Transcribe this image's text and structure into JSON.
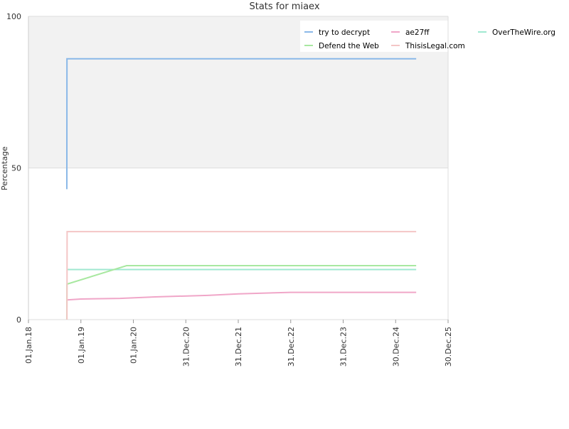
{
  "chart_data": {
    "type": "line",
    "title": "Stats for miaex",
    "y_label": "Percentage",
    "xlim": [
      "2018-01-01",
      "2025-12-30"
    ],
    "xticks": [
      {
        "value": "2018-01-01",
        "label": "01.Jan.18"
      },
      {
        "value": "2019-01-01",
        "label": "01.Jan.19"
      },
      {
        "value": "2020-01-01",
        "label": "01.Jan.20"
      },
      {
        "value": "2020-12-31",
        "label": "31.Dec.20"
      },
      {
        "value": "2021-12-31",
        "label": "31.Dec.21"
      },
      {
        "value": "2022-12-31",
        "label": "31.Dec.22"
      },
      {
        "value": "2023-12-31",
        "label": "31.Dec.23"
      },
      {
        "value": "2024-12-30",
        "label": "30.Dec.24"
      },
      {
        "value": "2025-12-30",
        "label": "30.Dec.25"
      }
    ],
    "ylim": [
      0,
      100
    ],
    "yticks": [
      0,
      50,
      100
    ],
    "grid": true,
    "series": [
      {
        "name": "try to decrypt",
        "color": "#8ab8e8",
        "x": [
          "2018-09-25",
          "2018-09-26",
          "2025-05-22"
        ],
        "values": [
          43,
          86,
          86
        ]
      },
      {
        "name": "ae27ff",
        "color": "#f0a6c8",
        "x": [
          "2018-09-27",
          "2019-01-01",
          "2019-10-01",
          "2020-06-01",
          "2021-06-01",
          "2022-01-01",
          "2022-12-31",
          "2025-05-22"
        ],
        "values": [
          6.5,
          6.8,
          7,
          7.5,
          8,
          8.5,
          9,
          9
        ]
      },
      {
        "name": "OverTheWire.org",
        "color": "#a0e8d0",
        "x": [
          "2018-09-27",
          "2025-05-22"
        ],
        "values": [
          16.5,
          16.5
        ]
      },
      {
        "name": "Defend the Web",
        "color": "#a8e8a0",
        "x": [
          "2018-09-25",
          "2018-09-26",
          "2019-11-15",
          "2025-05-22"
        ],
        "values": [
          0,
          11.7,
          17.8,
          17.8
        ]
      },
      {
        "name": "ThisisLegal.com",
        "color": "#f4c6c6",
        "x": [
          "2018-09-26",
          "2018-09-27",
          "2025-05-22"
        ],
        "values": [
          0,
          29,
          29
        ]
      }
    ]
  }
}
